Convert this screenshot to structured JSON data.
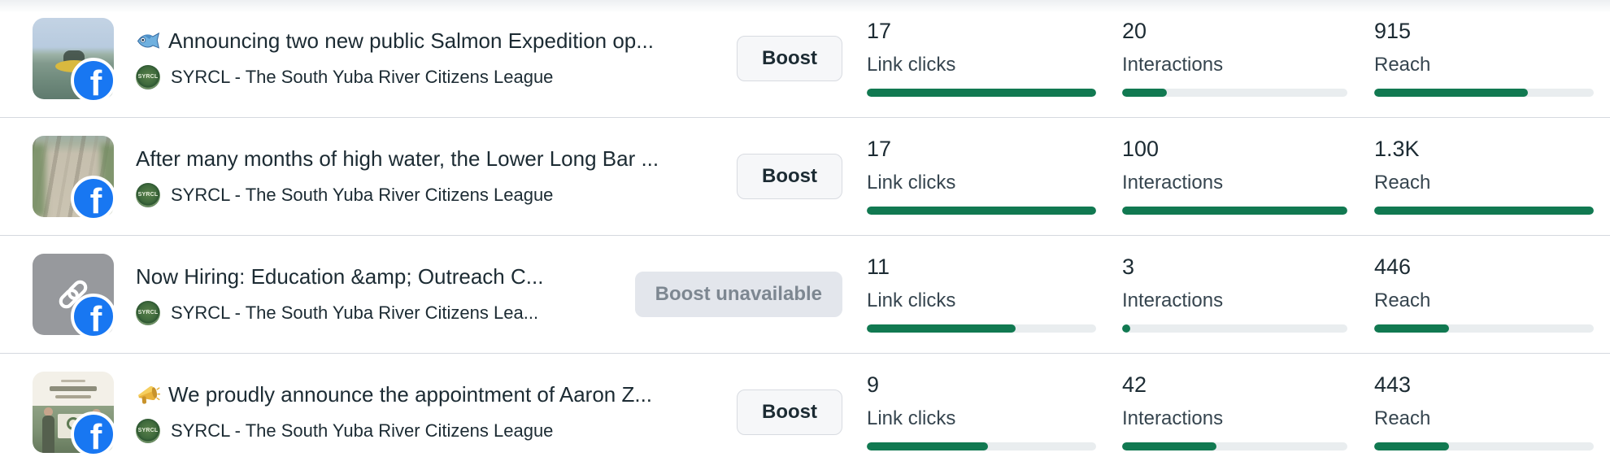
{
  "app": {
    "name": "Posts performance list"
  },
  "colors": {
    "accent_green": "#117951",
    "bar_track": "#e9edef",
    "facebook_blue": "#1877f2",
    "divider": "#d5d9df",
    "disabled_button_bg": "#e3e6ec",
    "text_primary": "#1c2b33"
  },
  "rows": [
    {
      "title": "Announcing two new public Salmon Expedition op...",
      "title_icon": "fish-emoji",
      "page_name": "SYRCL - The South Yuba River Citizens League",
      "thumbnail": "rafting-photo",
      "button": {
        "label": "Boost",
        "enabled": true
      },
      "metrics": [
        {
          "label": "Link clicks",
          "value": "17",
          "percent": 100
        },
        {
          "label": "Interactions",
          "value": "20",
          "percent": 20
        },
        {
          "label": "Reach",
          "value": "915",
          "percent": 70
        }
      ]
    },
    {
      "title": "After many months of high water, the Lower Long Bar ...",
      "title_icon": null,
      "page_name": "SYRCL - The South Yuba River Citizens League",
      "thumbnail": "aerial-river-photo",
      "button": {
        "label": "Boost",
        "enabled": true
      },
      "metrics": [
        {
          "label": "Link clicks",
          "value": "17",
          "percent": 100
        },
        {
          "label": "Interactions",
          "value": "100",
          "percent": 100
        },
        {
          "label": "Reach",
          "value": "1.3K",
          "percent": 100
        }
      ]
    },
    {
      "title": "Now Hiring: Education &amp; Outreach C...",
      "title_icon": null,
      "page_name": "SYRCL - The South Yuba River Citizens Lea...",
      "thumbnail": "link-placeholder",
      "button": {
        "label": "Boost unavailable",
        "enabled": false
      },
      "metrics": [
        {
          "label": "Link clicks",
          "value": "11",
          "percent": 65
        },
        {
          "label": "Interactions",
          "value": "3",
          "percent": 3
        },
        {
          "label": "Reach",
          "value": "446",
          "percent": 34
        }
      ]
    },
    {
      "title": "We proudly announce the appointment of Aaron Z...",
      "title_icon": "megaphone-emoji",
      "page_name": "SYRCL - The South Yuba River Citizens League",
      "thumbnail": "announcement-photo",
      "button": {
        "label": "Boost",
        "enabled": true
      },
      "metrics": [
        {
          "label": "Link clicks",
          "value": "9",
          "percent": 53
        },
        {
          "label": "Interactions",
          "value": "42",
          "percent": 42
        },
        {
          "label": "Reach",
          "value": "443",
          "percent": 34
        }
      ]
    }
  ],
  "avatar_text": "SYRCL",
  "facebook_badge_letter": "f"
}
